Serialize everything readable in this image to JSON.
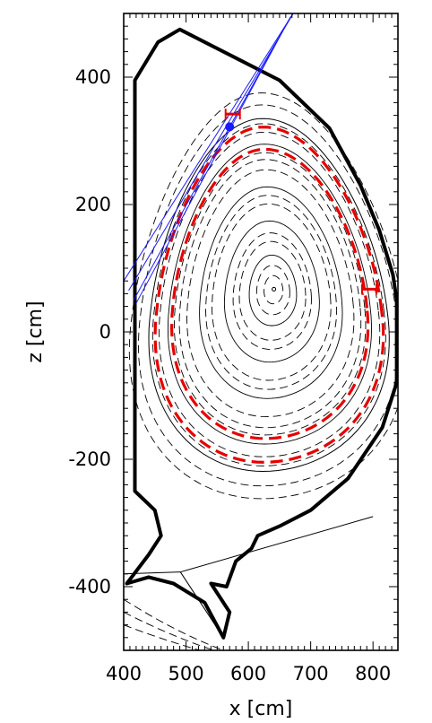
{
  "chart_data": {
    "type": "line",
    "title": "",
    "xlabel": "x [cm]",
    "ylabel": "z [cm]",
    "xlim": [
      400,
      840
    ],
    "ylim": [
      -500,
      500
    ],
    "x_ticks": [
      400,
      500,
      600,
      700,
      800
    ],
    "y_ticks": [
      -400,
      -200,
      0,
      200,
      400
    ],
    "minor_tick_step": 10,
    "grid": false,
    "legend": "none",
    "colors": {
      "wall": "#000000",
      "flux": "#000000",
      "highlight": "#e60000",
      "sightline": "#1a1aff"
    },
    "magnetic_axis": [
      641,
      67
    ],
    "wall_outline": [
      [
        418,
        290
      ],
      [
        418,
        395
      ],
      [
        455,
        455
      ],
      [
        490,
        475
      ],
      [
        580,
        430
      ],
      [
        650,
        395
      ],
      [
        730,
        320
      ],
      [
        780,
        230
      ],
      [
        810,
        160
      ],
      [
        832,
        90
      ],
      [
        838,
        50
      ],
      [
        838,
        -80
      ],
      [
        815,
        -150
      ],
      [
        760,
        -230
      ],
      [
        700,
        -280
      ],
      [
        650,
        -305
      ],
      [
        615,
        -320
      ],
      [
        605,
        -340
      ],
      [
        580,
        -360
      ],
      [
        565,
        -400
      ],
      [
        540,
        -395
      ],
      [
        570,
        -440
      ],
      [
        560,
        -480
      ],
      [
        530,
        -425
      ],
      [
        480,
        -395
      ],
      [
        440,
        -385
      ],
      [
        405,
        -395
      ],
      [
        440,
        -350
      ],
      [
        460,
        -320
      ],
      [
        450,
        -280
      ],
      [
        418,
        -250
      ],
      [
        418,
        290
      ]
    ],
    "separatrix": {
      "xpoint": [
        491,
        -377
      ],
      "center": [
        623,
        31
      ],
      "rx": [
        180,
        200
      ],
      "ry": [
        304,
        250
      ],
      "legs": [
        [
          [
            491,
            -377
          ],
          [
            400,
            -380
          ]
        ],
        [
          [
            491,
            -377
          ],
          [
            560,
            -480
          ]
        ],
        [
          [
            491,
            -377
          ],
          [
            800,
            -290
          ]
        ]
      ]
    },
    "flux_solid_levels": [
      0.2,
      0.4,
      0.6,
      0.85
    ],
    "flux_dashed_levels": [
      0.08,
      0.14,
      0.28,
      0.33,
      0.5,
      0.55,
      0.7,
      0.76,
      0.8,
      0.92,
      0.97,
      1.08,
      1.15
    ],
    "highlight_levels": [
      0.95,
      0.82
    ],
    "sightlines": [
      {
        "from": [
          400,
          80
        ],
        "to": [
          675,
          505
        ]
      },
      {
        "from": [
          408,
          65
        ],
        "to": [
          672,
          500
        ]
      },
      {
        "from": [
          416,
          50
        ],
        "to": [
          668,
          495
        ]
      },
      {
        "from": [
          420,
          45
        ],
        "to": [
          665,
          490
        ]
      }
    ],
    "sightline_marker": [
      570,
      322
    ],
    "red_tick_markers": [
      [
        794,
        67
      ],
      [
        575,
        342
      ]
    ]
  }
}
